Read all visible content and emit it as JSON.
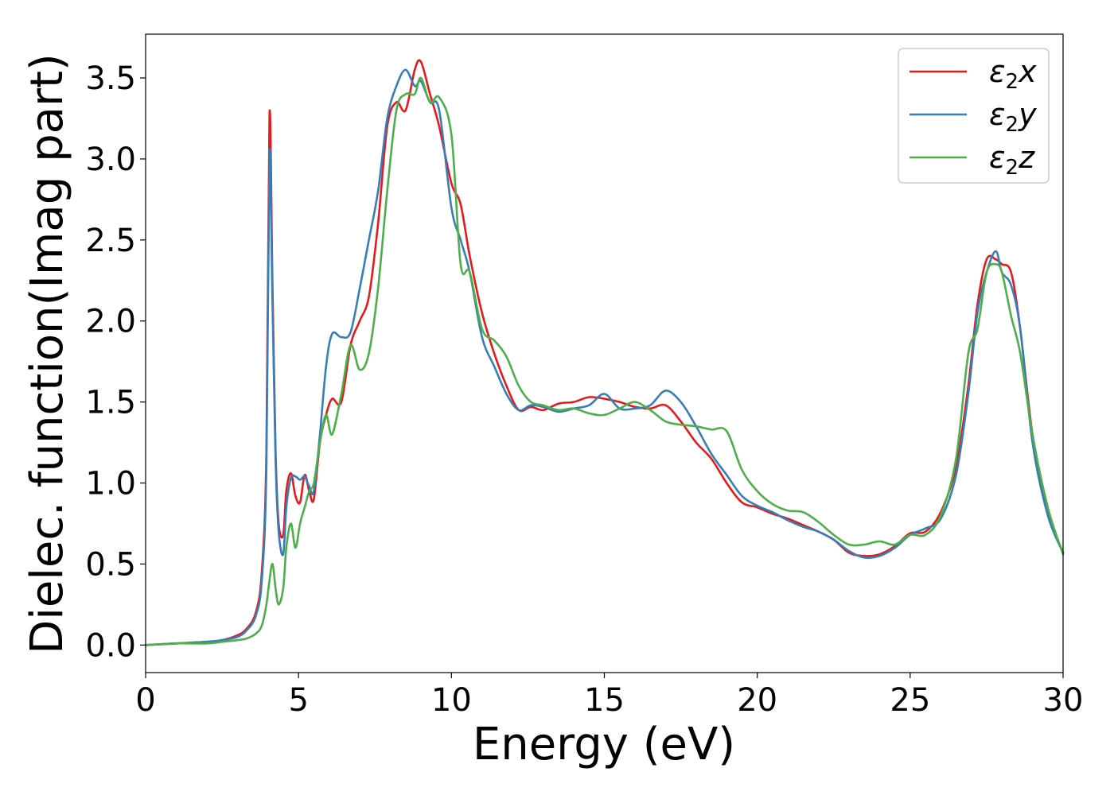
{
  "chart_data": {
    "type": "line",
    "xlabel": "Energy (eV)",
    "ylabel": "Dielec. function(Imag part)",
    "xlim": [
      0,
      30
    ],
    "ylim": [
      -0.17,
      3.77
    ],
    "xticks": [
      0,
      5,
      10,
      15,
      20,
      25,
      30
    ],
    "xtick_labels": [
      "0",
      "5",
      "10",
      "15",
      "20",
      "25",
      "30"
    ],
    "yticks": [
      0.0,
      0.5,
      1.0,
      1.5,
      2.0,
      2.5,
      3.0,
      3.5
    ],
    "ytick_labels": [
      "0.0",
      "0.5",
      "1.0",
      "1.5",
      "2.0",
      "2.5",
      "3.0",
      "3.5"
    ],
    "grid": false,
    "legend_position": "top-right",
    "series": [
      {
        "name": "ε₂x",
        "legend": {
          "symbol": "ε",
          "sub": "2",
          "suffix": "x"
        },
        "color": "#e41a1c",
        "x": [
          0,
          1,
          2,
          2.5,
          3,
          3.3,
          3.6,
          3.8,
          3.95,
          4.05,
          4.15,
          4.25,
          4.35,
          4.5,
          4.6,
          4.75,
          4.9,
          5.05,
          5.2,
          5.35,
          5.5,
          5.7,
          5.9,
          6.1,
          6.4,
          6.7,
          7.0,
          7.3,
          7.6,
          7.9,
          8.2,
          8.5,
          8.8,
          9.0,
          9.3,
          9.6,
          10.0,
          10.3,
          10.6,
          11.0,
          11.4,
          11.8,
          12.2,
          12.6,
          13.0,
          13.5,
          14.0,
          14.5,
          15.0,
          15.5,
          16.0,
          16.5,
          17.0,
          17.5,
          18.0,
          18.5,
          19.0,
          19.5,
          20.0,
          20.5,
          21.0,
          21.5,
          22.0,
          22.5,
          23.0,
          23.5,
          24.0,
          24.5,
          25.0,
          25.5,
          26.0,
          26.5,
          26.9,
          27.2,
          27.5,
          27.8,
          28.0,
          28.3,
          28.6,
          29.0,
          29.5,
          30.0
        ],
        "y": [
          0.0,
          0.01,
          0.02,
          0.03,
          0.06,
          0.1,
          0.2,
          0.45,
          1.2,
          3.28,
          2.2,
          1.2,
          0.75,
          0.68,
          0.95,
          1.06,
          0.92,
          0.88,
          1.05,
          0.95,
          0.9,
          1.25,
          1.42,
          1.52,
          1.5,
          1.85,
          2.0,
          2.15,
          2.6,
          3.2,
          3.35,
          3.3,
          3.55,
          3.6,
          3.4,
          3.2,
          2.85,
          2.72,
          2.4,
          2.05,
          1.8,
          1.6,
          1.45,
          1.47,
          1.45,
          1.49,
          1.5,
          1.53,
          1.52,
          1.5,
          1.47,
          1.46,
          1.48,
          1.38,
          1.25,
          1.15,
          1.0,
          0.88,
          0.85,
          0.81,
          0.78,
          0.74,
          0.7,
          0.65,
          0.57,
          0.55,
          0.56,
          0.61,
          0.69,
          0.7,
          0.82,
          1.1,
          1.6,
          2.1,
          2.38,
          2.38,
          2.35,
          2.3,
          1.95,
          1.3,
          0.82,
          0.57
        ]
      },
      {
        "name": "ε₂y",
        "legend": {
          "symbol": "ε",
          "sub": "2",
          "suffix": "y"
        },
        "color": "#377eb8",
        "x": [
          0,
          1,
          2,
          2.5,
          3,
          3.3,
          3.6,
          3.8,
          3.95,
          4.05,
          4.15,
          4.25,
          4.35,
          4.5,
          4.6,
          4.75,
          4.9,
          5.05,
          5.2,
          5.35,
          5.5,
          5.7,
          5.9,
          6.1,
          6.4,
          6.7,
          7.0,
          7.3,
          7.6,
          7.9,
          8.2,
          8.5,
          8.8,
          9.0,
          9.3,
          9.6,
          10.0,
          10.3,
          10.6,
          11.0,
          11.4,
          11.8,
          12.2,
          12.6,
          13.0,
          13.5,
          14.0,
          14.5,
          15.0,
          15.5,
          16.0,
          16.5,
          17.0,
          17.5,
          18.0,
          18.5,
          19.0,
          19.5,
          20.0,
          20.5,
          21.0,
          21.5,
          22.0,
          22.5,
          23.0,
          23.5,
          24.0,
          24.5,
          25.0,
          25.5,
          26.0,
          26.5,
          26.9,
          27.2,
          27.5,
          27.8,
          28.0,
          28.3,
          28.6,
          29.0,
          29.5,
          30.0
        ],
        "y": [
          0.0,
          0.01,
          0.02,
          0.03,
          0.05,
          0.09,
          0.18,
          0.4,
          1.1,
          3.04,
          2.1,
          1.15,
          0.7,
          0.56,
          0.85,
          1.03,
          1.04,
          1.02,
          1.04,
          0.98,
          0.95,
          1.3,
          1.72,
          1.92,
          1.9,
          1.93,
          2.2,
          2.5,
          2.8,
          3.25,
          3.45,
          3.55,
          3.45,
          3.48,
          3.35,
          3.3,
          2.7,
          2.5,
          2.3,
          1.9,
          1.72,
          1.55,
          1.45,
          1.48,
          1.47,
          1.44,
          1.46,
          1.48,
          1.55,
          1.46,
          1.46,
          1.48,
          1.57,
          1.5,
          1.35,
          1.18,
          1.05,
          0.92,
          0.86,
          0.82,
          0.77,
          0.73,
          0.7,
          0.65,
          0.58,
          0.54,
          0.55,
          0.6,
          0.68,
          0.72,
          0.78,
          1.05,
          1.55,
          2.05,
          2.3,
          2.43,
          2.3,
          2.22,
          1.95,
          1.25,
          0.8,
          0.57
        ]
      },
      {
        "name": "ε₂z",
        "legend": {
          "symbol": "ε",
          "sub": "2",
          "suffix": "z"
        },
        "color": "#4daf4a",
        "x": [
          0,
          1,
          2,
          2.5,
          3,
          3.3,
          3.6,
          3.8,
          3.95,
          4.05,
          4.15,
          4.25,
          4.35,
          4.5,
          4.6,
          4.75,
          4.9,
          5.05,
          5.2,
          5.35,
          5.5,
          5.7,
          5.9,
          6.1,
          6.4,
          6.7,
          7.0,
          7.3,
          7.6,
          7.9,
          8.2,
          8.5,
          8.8,
          9.0,
          9.3,
          9.6,
          10.0,
          10.3,
          10.6,
          11.0,
          11.4,
          11.8,
          12.2,
          12.6,
          13.0,
          13.5,
          14.0,
          14.5,
          15.0,
          15.5,
          16.0,
          16.5,
          17.0,
          17.5,
          18.0,
          18.5,
          19.0,
          19.5,
          20.0,
          20.5,
          21.0,
          21.5,
          22.0,
          22.5,
          23.0,
          23.5,
          24.0,
          24.5,
          25.0,
          25.5,
          26.0,
          26.5,
          26.9,
          27.2,
          27.5,
          27.8,
          28.0,
          28.3,
          28.6,
          29.0,
          29.5,
          30.0
        ],
        "y": [
          0.0,
          0.01,
          0.01,
          0.02,
          0.03,
          0.04,
          0.07,
          0.12,
          0.25,
          0.4,
          0.5,
          0.35,
          0.25,
          0.35,
          0.6,
          0.75,
          0.6,
          0.75,
          0.85,
          0.95,
          1.0,
          1.25,
          1.42,
          1.3,
          1.55,
          1.85,
          1.7,
          1.8,
          2.2,
          2.8,
          3.3,
          3.4,
          3.4,
          3.5,
          3.35,
          3.38,
          3.15,
          2.35,
          2.3,
          1.95,
          1.88,
          1.78,
          1.6,
          1.5,
          1.48,
          1.45,
          1.46,
          1.43,
          1.42,
          1.46,
          1.5,
          1.45,
          1.38,
          1.36,
          1.35,
          1.33,
          1.32,
          1.08,
          0.95,
          0.87,
          0.83,
          0.82,
          0.76,
          0.68,
          0.62,
          0.62,
          0.64,
          0.62,
          0.68,
          0.68,
          0.8,
          1.15,
          1.8,
          1.95,
          2.3,
          2.35,
          2.3,
          2.03,
          1.8,
          1.3,
          0.85,
          0.56
        ]
      }
    ]
  }
}
